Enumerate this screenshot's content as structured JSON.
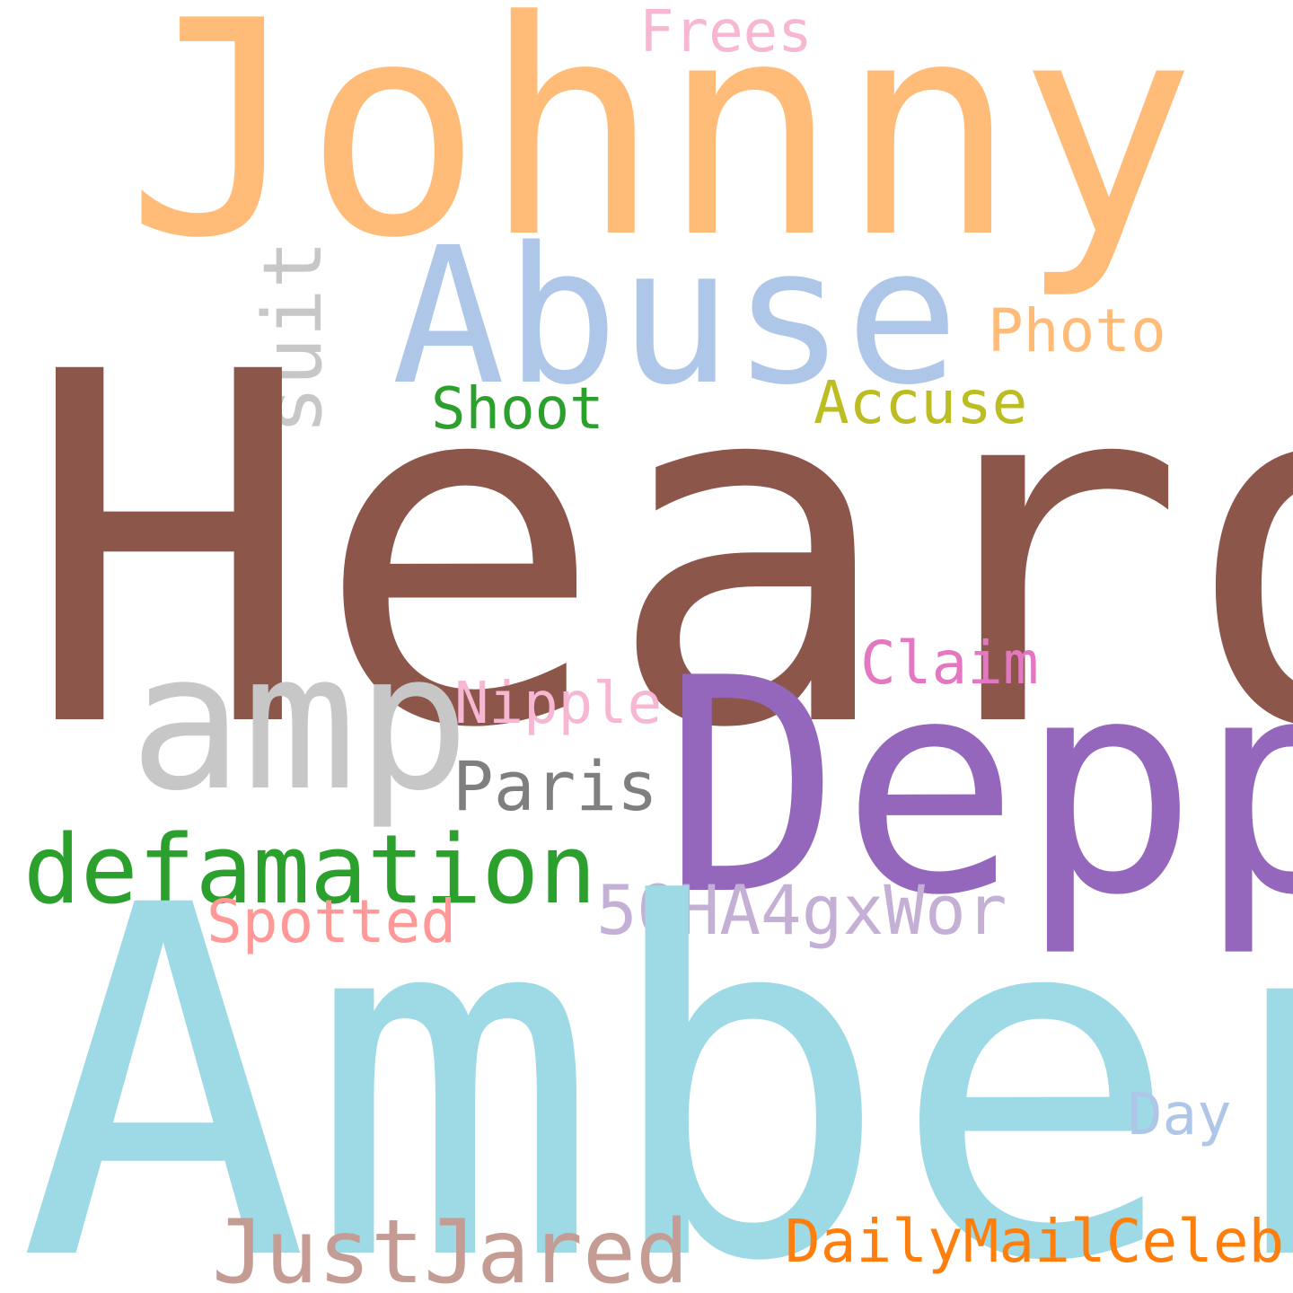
{
  "words": [
    {
      "text": "Johnny",
      "color": "#ffbb78"
    },
    {
      "text": "Frees",
      "color": "#f7b6d2"
    },
    {
      "text": "Abuse",
      "color": "#aec7e8"
    },
    {
      "text": "suit",
      "color": "#c7c7c7"
    },
    {
      "text": "Photo",
      "color": "#ffbb78"
    },
    {
      "text": "Shoot",
      "color": "#2ca02c"
    },
    {
      "text": "Accuse",
      "color": "#bcbd22"
    },
    {
      "text": "Heard",
      "color": "#8c564b"
    },
    {
      "text": "Claim",
      "color": "#e377c2"
    },
    {
      "text": "amp",
      "color": "#c7c7c7"
    },
    {
      "text": "Nipple",
      "color": "#f7b6d2"
    },
    {
      "text": "Depp",
      "color": "#9467bd"
    },
    {
      "text": "Paris",
      "color": "#7f7f7f"
    },
    {
      "text": "defamation",
      "color": "#2ca02c"
    },
    {
      "text": "5QHA4gxWor",
      "color": "#c5b0d5"
    },
    {
      "text": "Spotted",
      "color": "#ff9896"
    },
    {
      "text": "Amber",
      "color": "#9edae5"
    },
    {
      "text": "Day",
      "color": "#aec7e8"
    },
    {
      "text": "JustJared",
      "color": "#c49c94"
    },
    {
      "text": "DailyMailCeleb",
      "color": "#ff7f0e"
    }
  ]
}
